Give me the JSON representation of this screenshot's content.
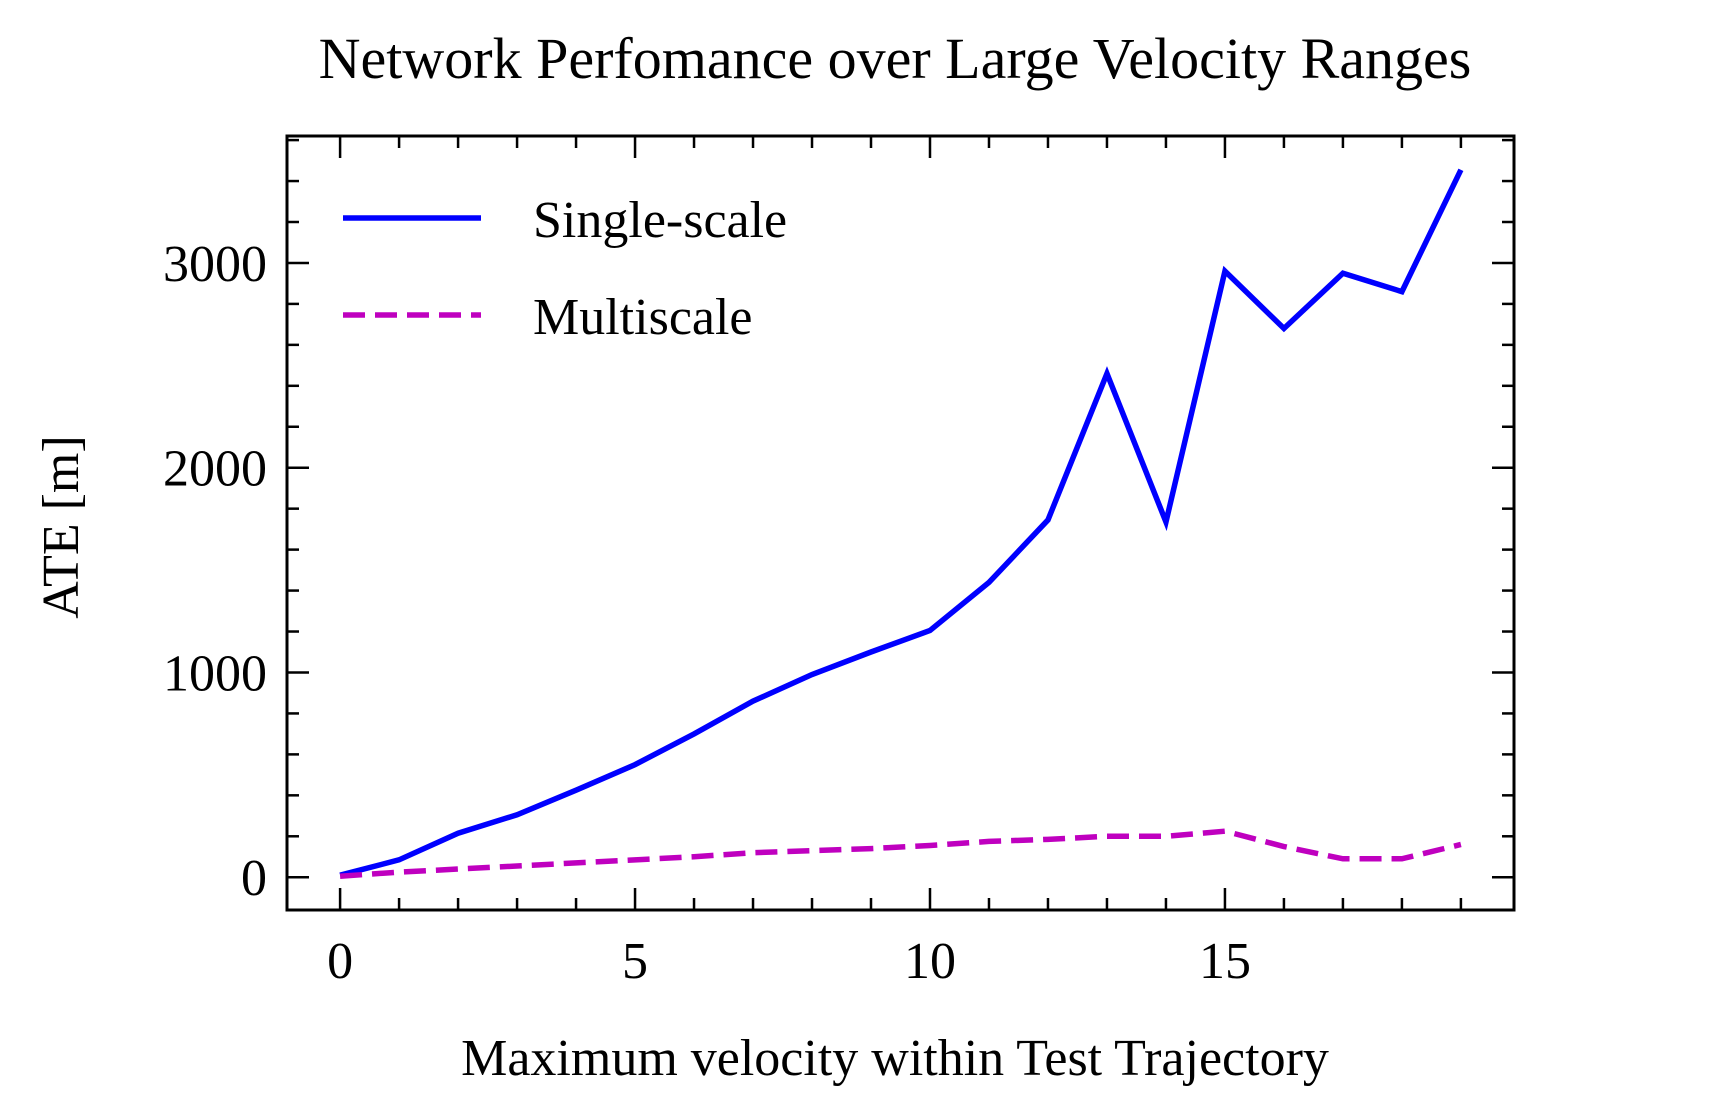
{
  "colors": {
    "single_scale": "#0000ff",
    "multiscale": "#bf00bf",
    "axes": "#000000",
    "background": "#ffffff"
  },
  "chart_data": {
    "type": "line",
    "title": "Network Perfomance over Large Velocity Ranges",
    "xlabel": "Maximum velocity within Test Trajectory",
    "ylabel": "ATE [m]",
    "xlim": [
      -0.9,
      19.9
    ],
    "ylim": [
      -160,
      3620
    ],
    "xticks": [
      0,
      5,
      10,
      15
    ],
    "yticks": [
      0,
      1000,
      2000,
      3000
    ],
    "grid": false,
    "legend_position": "upper-left",
    "x": [
      0,
      1,
      2,
      3,
      4,
      5,
      6,
      7,
      8,
      9,
      10,
      11,
      12,
      13,
      14,
      15,
      16,
      17,
      18,
      19
    ],
    "series": [
      {
        "name": "Single-scale",
        "style": "solid",
        "values": [
          10,
          85,
          215,
          305,
          425,
          550,
          700,
          860,
          990,
          1100,
          1205,
          1440,
          1745,
          2460,
          1735,
          2960,
          2680,
          2950,
          2860,
          3455
        ]
      },
      {
        "name": "Multiscale",
        "style": "dashed",
        "values": [
          5,
          25,
          40,
          55,
          70,
          85,
          100,
          120,
          130,
          140,
          155,
          175,
          185,
          200,
          200,
          225,
          150,
          90,
          90,
          160
        ]
      }
    ]
  }
}
